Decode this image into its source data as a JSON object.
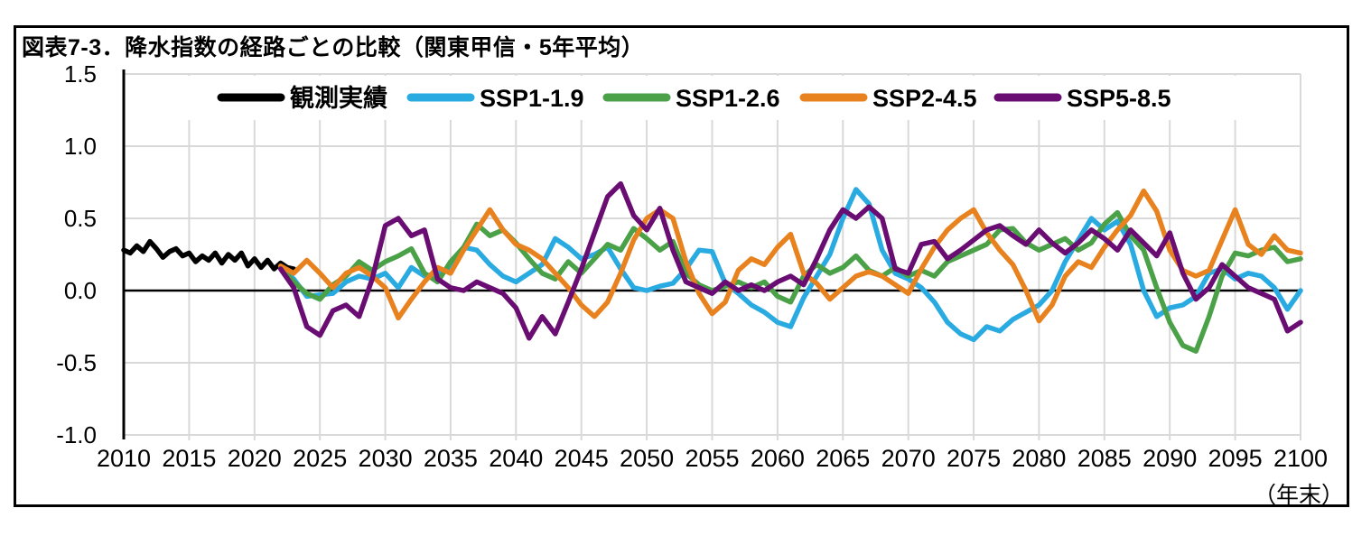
{
  "figure": {
    "title": "図表7-3．降水指数の経路ごとの比較（関東甲信・5年平均）",
    "x_axis_unit": "（年末）"
  },
  "chart_data": {
    "type": "line",
    "title": "図表7-3．降水指数の経路ごとの比較（関東甲信・5年平均）",
    "grid": true,
    "legend_position": "top-inside",
    "grid_color": "#D9D9D9",
    "axis_color": "#000000",
    "x_axis": {
      "min": 2010,
      "max": 2100,
      "tick_interval": 5,
      "tick_labels": [
        "2010",
        "2015",
        "2020",
        "2025",
        "2030",
        "2035",
        "2040",
        "2045",
        "2050",
        "2055",
        "2060",
        "2065",
        "2070",
        "2075",
        "2080",
        "2085",
        "2090",
        "2095",
        "2100"
      ],
      "unit_label": "（年末）"
    },
    "y_axis": {
      "min": -1.0,
      "max": 1.5,
      "tick_interval": 0.5,
      "tick_labels": [
        "1.5",
        "1.0",
        "0.5",
        "0.0",
        "-0.5",
        "-1.0"
      ]
    },
    "series": [
      {
        "key": "observed",
        "name": "観測実績",
        "color": "#000000",
        "x_start": 2010,
        "x_step": 0.5,
        "values": [
          0.28,
          0.26,
          0.31,
          0.27,
          0.34,
          0.29,
          0.23,
          0.27,
          0.29,
          0.24,
          0.26,
          0.2,
          0.24,
          0.21,
          0.26,
          0.19,
          0.25,
          0.21,
          0.26,
          0.17,
          0.22,
          0.16,
          0.21,
          0.15,
          0.19,
          0.16,
          0.15
        ]
      },
      {
        "key": "ssp1-1-9",
        "name": "SSP1-1.9",
        "color": "#29ABE2",
        "x_start": 2022,
        "x_step": 1,
        "values": [
          0.16,
          0.08,
          -0.04,
          -0.03,
          -0.02,
          0.06,
          0.1,
          0.08,
          0.12,
          0.02,
          0.16,
          0.1,
          0.12,
          0.15,
          0.3,
          0.28,
          0.18,
          0.1,
          0.06,
          0.12,
          0.18,
          0.36,
          0.3,
          0.22,
          0.25,
          0.3,
          0.15,
          0.02,
          0.0,
          0.03,
          0.05,
          0.15,
          0.28,
          0.27,
          0.05,
          -0.02,
          -0.1,
          -0.15,
          -0.22,
          -0.25,
          -0.05,
          0.1,
          0.25,
          0.5,
          0.7,
          0.6,
          0.28,
          0.12,
          0.08,
          0.02,
          -0.08,
          -0.22,
          -0.3,
          -0.34,
          -0.25,
          -0.28,
          -0.2,
          -0.15,
          -0.1,
          0.0,
          0.2,
          0.35,
          0.5,
          0.42,
          0.48,
          0.32,
          0.0,
          -0.18,
          -0.12,
          -0.1,
          -0.04,
          0.12,
          0.15,
          0.08,
          0.12,
          0.1,
          0.02,
          -0.13,
          0.0
        ]
      },
      {
        "key": "ssp1-2-6",
        "name": "SSP1-2.6",
        "color": "#4AA147",
        "x_start": 2022,
        "x_step": 1,
        "values": [
          0.16,
          0.06,
          -0.02,
          -0.06,
          0.04,
          0.1,
          0.2,
          0.14,
          0.2,
          0.24,
          0.29,
          0.12,
          0.06,
          0.2,
          0.3,
          0.46,
          0.38,
          0.42,
          0.33,
          0.22,
          0.12,
          0.08,
          0.2,
          0.12,
          0.22,
          0.32,
          0.28,
          0.43,
          0.36,
          0.28,
          0.34,
          0.12,
          0.04,
          0.0,
          0.03,
          0.06,
          0.02,
          0.06,
          -0.04,
          -0.08,
          0.1,
          0.18,
          0.12,
          0.16,
          0.24,
          0.14,
          0.1,
          0.16,
          0.1,
          0.14,
          0.1,
          0.2,
          0.24,
          0.28,
          0.32,
          0.42,
          0.43,
          0.33,
          0.28,
          0.32,
          0.36,
          0.28,
          0.33,
          0.46,
          0.54,
          0.38,
          0.28,
          0.02,
          -0.22,
          -0.38,
          -0.42,
          -0.18,
          0.1,
          0.26,
          0.24,
          0.28,
          0.3,
          0.2,
          0.22
        ]
      },
      {
        "key": "ssp2-4-5",
        "name": "SSP2-4.5",
        "color": "#E8821E",
        "x_start": 2022,
        "x_step": 1,
        "values": [
          0.17,
          0.12,
          0.21,
          0.12,
          0.02,
          0.12,
          0.16,
          0.1,
          0.02,
          -0.19,
          -0.06,
          0.06,
          0.16,
          0.12,
          0.28,
          0.42,
          0.56,
          0.42,
          0.32,
          0.28,
          0.22,
          0.12,
          0.02,
          -0.1,
          -0.18,
          -0.08,
          0.12,
          0.35,
          0.5,
          0.56,
          0.5,
          0.2,
          -0.02,
          -0.16,
          -0.08,
          0.14,
          0.22,
          0.18,
          0.3,
          0.39,
          0.12,
          0.05,
          -0.06,
          0.02,
          0.1,
          0.13,
          0.1,
          0.04,
          -0.02,
          0.15,
          0.3,
          0.42,
          0.5,
          0.56,
          0.4,
          0.28,
          0.18,
          0.0,
          -0.21,
          -0.1,
          0.1,
          0.2,
          0.16,
          0.3,
          0.42,
          0.52,
          0.69,
          0.55,
          0.28,
          0.14,
          0.1,
          0.14,
          0.35,
          0.56,
          0.32,
          0.25,
          0.38,
          0.28,
          0.26
        ]
      },
      {
        "key": "ssp5-8-5",
        "name": "SSP5-8.5",
        "color": "#6A0D73",
        "x_start": 2022,
        "x_step": 1,
        "values": [
          0.15,
          0.02,
          -0.25,
          -0.31,
          -0.14,
          -0.1,
          -0.18,
          0.08,
          0.45,
          0.5,
          0.38,
          0.42,
          0.08,
          0.02,
          0.0,
          0.06,
          0.02,
          -0.02,
          -0.12,
          -0.33,
          -0.18,
          -0.3,
          -0.08,
          0.15,
          0.4,
          0.65,
          0.74,
          0.52,
          0.42,
          0.57,
          0.28,
          0.06,
          0.02,
          -0.02,
          0.06,
          0.0,
          0.04,
          0.0,
          0.06,
          0.1,
          0.04,
          0.22,
          0.42,
          0.56,
          0.5,
          0.58,
          0.5,
          0.15,
          0.12,
          0.32,
          0.34,
          0.22,
          0.28,
          0.35,
          0.42,
          0.45,
          0.38,
          0.32,
          0.42,
          0.33,
          0.26,
          0.33,
          0.42,
          0.36,
          0.28,
          0.42,
          0.33,
          0.24,
          0.4,
          0.12,
          -0.06,
          0.02,
          0.18,
          0.1,
          0.02,
          -0.02,
          -0.06,
          -0.28,
          -0.22
        ]
      }
    ]
  }
}
